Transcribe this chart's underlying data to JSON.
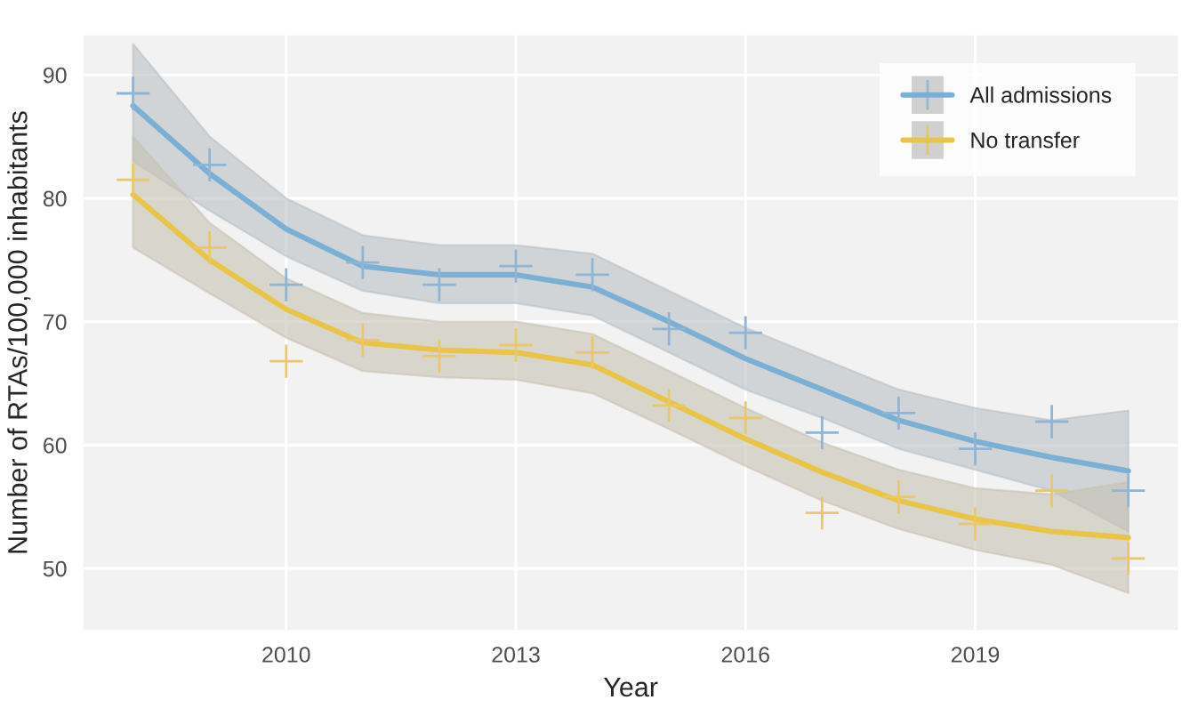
{
  "chart_data": {
    "type": "line",
    "xlabel": "Year",
    "ylabel": "Number of RTAs/100,000 inhabitants",
    "x": [
      2008,
      2009,
      2010,
      2011,
      2012,
      2013,
      2014,
      2015,
      2016,
      2017,
      2018,
      2019,
      2020,
      2021
    ],
    "series": [
      {
        "type": "scatter",
        "color": "#8fb4d4",
        "marker": "cross",
        "values": [
          88.5,
          82.7,
          73,
          74.8,
          73,
          74.5,
          73.8,
          69.4,
          69.1,
          61,
          62.6,
          59.7,
          61.9,
          56.3
        ]
      },
      {
        "type": "scatter",
        "color": "#e8c86a",
        "marker": "cross",
        "values": [
          81.5,
          76,
          66.8,
          68.5,
          67.2,
          68.1,
          67.5,
          63.2,
          62.2,
          54.5,
          55.8,
          53.6,
          56.3,
          50.8
        ]
      },
      {
        "name": "All admissions",
        "color": "#7bafd4",
        "values": [
          87.5,
          82,
          77.5,
          74.5,
          73.8,
          73.8,
          72.8,
          70,
          67,
          64.5,
          62,
          60.3,
          59,
          57.9
        ],
        "lower": [
          83,
          79,
          75.3,
          72.5,
          71.5,
          71.5,
          70.5,
          67.5,
          64.5,
          62.2,
          59.7,
          58,
          56.3,
          53
        ],
        "upper": [
          92.5,
          85,
          80,
          77,
          76.2,
          76.2,
          75.5,
          72.5,
          69.5,
          67,
          64.5,
          63,
          62,
          62.8
        ]
      },
      {
        "name": "No transfer",
        "color": "#e8c547",
        "values": [
          80.3,
          75,
          71,
          68.3,
          67.7,
          67.5,
          66.5,
          63.5,
          60.5,
          57.8,
          55.5,
          54,
          53,
          52.5
        ],
        "lower": [
          76,
          72.3,
          68.7,
          66,
          65.5,
          65.3,
          64.2,
          61.3,
          58.3,
          55.5,
          53.2,
          51.5,
          50.3,
          48
        ],
        "upper": [
          85,
          78,
          73.5,
          70.7,
          70,
          70,
          69,
          66,
          63,
          60.2,
          58,
          56.5,
          56,
          57
        ]
      }
    ],
    "xlim": [
      2007.35,
      2021.65
    ],
    "xticks": [
      2010,
      2013,
      2016,
      2019
    ],
    "ylim": [
      45,
      93.2
    ],
    "yticks": [
      50,
      60,
      70,
      80,
      90
    ],
    "grid": true,
    "legend": "top right",
    "line_style": "solid"
  }
}
